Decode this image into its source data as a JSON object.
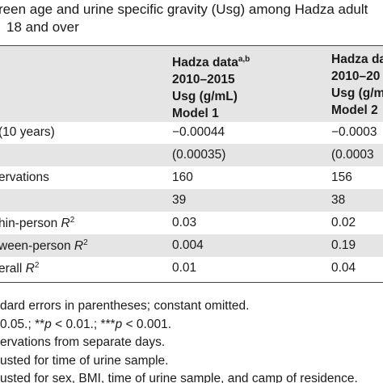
{
  "title": {
    "line1": "reen age and urine specific gravity (Usg) among Hadza adult",
    "line2": "18 and over"
  },
  "header": {
    "col1": {
      "line1": "Hadza data",
      "sup": "a,b",
      "line2": "2010–2015",
      "line3": "Usg (g/mL)",
      "line4": "Model 1"
    },
    "col2": {
      "line1": "Hadza da",
      "line2": "2010–20",
      "line3": "Usg (g/m",
      "line4": "Model 2"
    }
  },
  "table": {
    "rows": [
      {
        "label": "(10 years)",
        "v1": "−0.00044",
        "v2": "−0.0003"
      },
      {
        "label": null,
        "v1": "(0.00035)",
        "v2": "(0.0003"
      },
      {
        "label": "ervations",
        "v1": "160",
        "v2": "156"
      },
      {
        "label": null,
        "v1": "39",
        "v2": "38"
      },
      {
        "label": "hin-person ",
        "var": "R",
        "sup": "2",
        "v1": "0.03",
        "v2": "0.02"
      },
      {
        "label": "ween-person ",
        "var": "R",
        "sup": "2",
        "v1": "0.004",
        "v2": "0.19"
      },
      {
        "label": "erall ",
        "var": "R",
        "sup": "2",
        "v1": "0.01",
        "v2": "0.04"
      }
    ]
  },
  "footnotes": [
    [
      "dard errors in parentheses; constant omitted."
    ],
    [
      "0.05.; **",
      "p",
      " < 0.01.; ***",
      "p",
      " < 0.001."
    ],
    [
      "ervations from separate days."
    ],
    [
      "usted for time of urine sample."
    ],
    [
      "usted for sex, BMI, time of urine sample, and camp of residence."
    ]
  ]
}
